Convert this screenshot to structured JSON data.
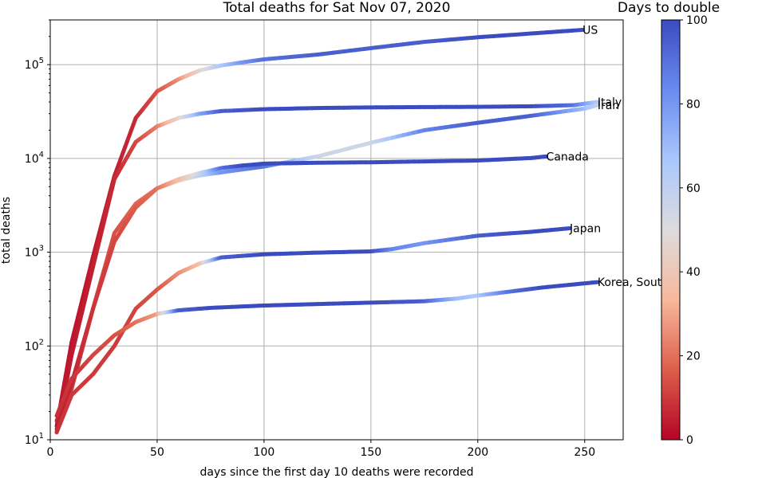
{
  "chart_data": {
    "type": "line",
    "title": "Total deaths for Sat Nov 07, 2020",
    "xlabel": "days since the first day 10 deaths were recorded",
    "ylabel": "total deaths",
    "xlim": [
      0,
      268
    ],
    "ylim": [
      10,
      300000
    ],
    "yscale": "log",
    "x_ticks": [
      0,
      50,
      100,
      150,
      200,
      250
    ],
    "y_ticks": [
      {
        "value": 10,
        "base": "10",
        "exp": "1"
      },
      {
        "value": 100,
        "base": "10",
        "exp": "2"
      },
      {
        "value": 1000,
        "base": "10",
        "exp": "3"
      },
      {
        "value": 10000,
        "base": "10",
        "exp": "4"
      },
      {
        "value": 100000,
        "base": "10",
        "exp": "5"
      }
    ],
    "grid": true,
    "color_encoding": "days to double",
    "colorbar": {
      "title": "Days to double",
      "min": 0,
      "max": 100,
      "ticks": [
        0,
        20,
        40,
        60,
        80,
        100
      ],
      "colormap": "coolwarm_r",
      "colors": [
        "#b40426",
        "#dd5e4b",
        "#f7b89c",
        "#dddcdc",
        "#aac7fd",
        "#6a8bef",
        "#3b4cc0"
      ]
    },
    "series": [
      {
        "name": "US",
        "x": [
          3,
          10,
          20,
          30,
          40,
          50,
          60,
          70,
          80,
          90,
          100,
          125,
          150,
          175,
          200,
          225,
          249
        ],
        "y": [
          14,
          110,
          900,
          6500,
          27000,
          52000,
          70000,
          87000,
          98000,
          106000,
          114000,
          128000,
          150000,
          175000,
          196000,
          215000,
          235000
        ],
        "days_to_double": [
          4,
          3,
          4,
          5,
          7,
          14,
          25,
          45,
          65,
          80,
          90,
          95,
          95,
          95,
          100,
          100,
          100
        ]
      },
      {
        "name": "Italy",
        "x": [
          3,
          10,
          20,
          30,
          40,
          50,
          60,
          70,
          80,
          100,
          125,
          150,
          175,
          200,
          225,
          245,
          256
        ],
        "y": [
          12,
          80,
          700,
          6000,
          15000,
          22000,
          27000,
          30000,
          32000,
          33500,
          34500,
          35000,
          35300,
          35500,
          36000,
          37000,
          40000
        ],
        "days_to_double": [
          4,
          4,
          5,
          7,
          12,
          22,
          45,
          75,
          95,
          100,
          100,
          100,
          100,
          100,
          100,
          90,
          65
        ]
      },
      {
        "name": "Iran",
        "x": [
          3,
          10,
          20,
          30,
          40,
          50,
          60,
          70,
          80,
          100,
          125,
          150,
          175,
          200,
          225,
          250,
          256
        ],
        "y": [
          16,
          35,
          250,
          1600,
          3300,
          4800,
          5800,
          6600,
          7100,
          8200,
          10500,
          14700,
          20000,
          24000,
          28500,
          34000,
          37000
        ],
        "days_to_double": [
          6,
          10,
          12,
          14,
          18,
          22,
          40,
          60,
          80,
          90,
          55,
          55,
          85,
          95,
          95,
          70,
          60
        ]
      },
      {
        "name": "Canada",
        "x": [
          3,
          10,
          20,
          30,
          40,
          50,
          60,
          70,
          80,
          90,
          100,
          125,
          150,
          175,
          200,
          225,
          232
        ],
        "y": [
          13,
          40,
          250,
          1300,
          3000,
          4800,
          6000,
          7000,
          7900,
          8400,
          8800,
          9000,
          9100,
          9300,
          9500,
          10100,
          10500
        ],
        "days_to_double": [
          5,
          6,
          9,
          12,
          16,
          20,
          35,
          55,
          90,
          100,
          100,
          100,
          100,
          100,
          100,
          100,
          100
        ]
      },
      {
        "name": "Japan",
        "x": [
          3,
          10,
          20,
          30,
          40,
          50,
          60,
          70,
          80,
          100,
          125,
          150,
          160,
          175,
          200,
          225,
          243
        ],
        "y": [
          12,
          30,
          50,
          100,
          250,
          400,
          600,
          760,
          880,
          950,
          990,
          1020,
          1080,
          1250,
          1500,
          1650,
          1800
        ],
        "days_to_double": [
          8,
          10,
          10,
          10,
          12,
          15,
          25,
          35,
          95,
          100,
          100,
          100,
          85,
          80,
          95,
          100,
          100
        ]
      },
      {
        "name": "Korea, South",
        "x": [
          3,
          10,
          20,
          30,
          40,
          50,
          60,
          75,
          100,
          125,
          150,
          175,
          190,
          200,
          215,
          230,
          256
        ],
        "y": [
          18,
          45,
          80,
          130,
          180,
          220,
          240,
          255,
          270,
          280,
          290,
          300,
          320,
          345,
          380,
          420,
          480
        ],
        "days_to_double": [
          8,
          9,
          12,
          14,
          20,
          28,
          95,
          100,
          100,
          100,
          100,
          95,
          70,
          65,
          90,
          100,
          100
        ]
      }
    ]
  }
}
